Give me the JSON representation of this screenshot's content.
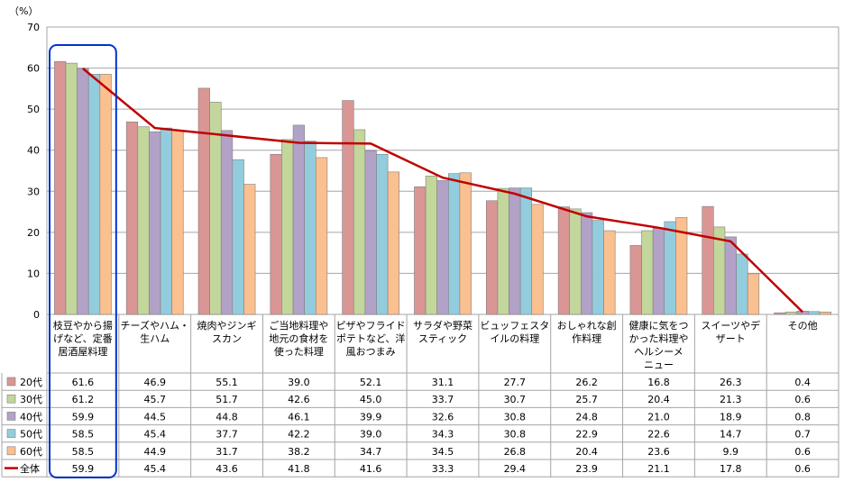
{
  "chart_data": {
    "type": "bar",
    "unit_label": "（%）",
    "ylim": [
      0,
      70
    ],
    "yticks": [
      0,
      10,
      20,
      30,
      40,
      50,
      60,
      70
    ],
    "grid": true,
    "categories": [
      [
        "枝豆やから揚",
        "げなど、定番",
        "居酒屋料理"
      ],
      [
        "チーズやハム・",
        "生ハム"
      ],
      [
        "焼肉やジンギ",
        "スカン"
      ],
      [
        "ご当地料理や",
        "地元の食材を",
        "使った料理"
      ],
      [
        "ピザやフライド",
        "ポテトなど、洋",
        "風おつまみ"
      ],
      [
        "サラダや野菜",
        "スティック"
      ],
      [
        "ビュッフェスタ",
        "イルの料理"
      ],
      [
        "おしゃれな創",
        "作料理"
      ],
      [
        "健康に気をつ",
        "かった料理や",
        "ヘルシーメ",
        "ニュー"
      ],
      [
        "スイーツやデ",
        "ザート"
      ],
      [
        "その他"
      ]
    ],
    "series": [
      {
        "name": "20代",
        "kind": "bar",
        "color": "#d99694",
        "values": [
          61.6,
          46.9,
          55.1,
          39.0,
          52.1,
          31.1,
          27.7,
          26.2,
          16.8,
          26.3,
          0.4
        ]
      },
      {
        "name": "30代",
        "kind": "bar",
        "color": "#c3d69b",
        "values": [
          61.2,
          45.7,
          51.7,
          42.6,
          45.0,
          33.7,
          30.7,
          25.7,
          20.4,
          21.3,
          0.6
        ]
      },
      {
        "name": "40代",
        "kind": "bar",
        "color": "#b3a2c7",
        "values": [
          59.9,
          44.5,
          44.8,
          46.1,
          39.9,
          32.6,
          30.8,
          24.8,
          21.0,
          18.9,
          0.8
        ]
      },
      {
        "name": "50代",
        "kind": "bar",
        "color": "#93cddd",
        "values": [
          58.5,
          45.4,
          37.7,
          42.2,
          39.0,
          34.3,
          30.8,
          22.9,
          22.6,
          14.7,
          0.7
        ]
      },
      {
        "name": "60代",
        "kind": "bar",
        "color": "#fac090",
        "values": [
          58.5,
          44.9,
          31.7,
          38.2,
          34.7,
          34.5,
          26.8,
          20.4,
          23.6,
          9.9,
          0.6
        ]
      },
      {
        "name": "全体",
        "kind": "line",
        "color": "#c00000",
        "values": [
          59.9,
          45.4,
          43.6,
          41.8,
          41.6,
          33.3,
          29.4,
          23.9,
          21.1,
          17.8,
          0.6
        ]
      }
    ],
    "highlight": {
      "category_index": 0,
      "color": "#0033cc"
    }
  }
}
